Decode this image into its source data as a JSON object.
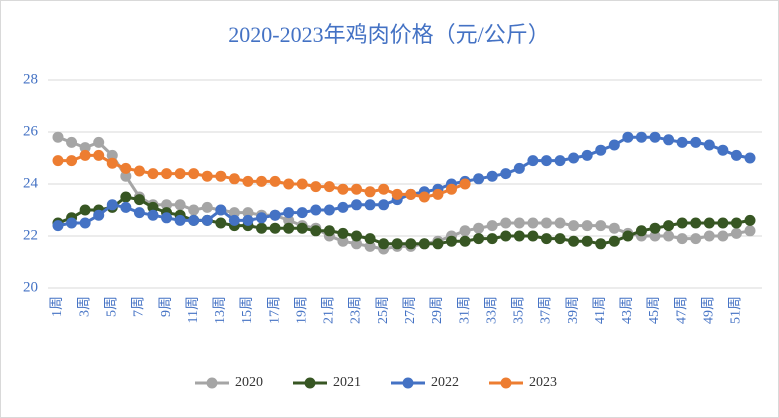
{
  "chart_data": {
    "type": "line",
    "title": "2020-2023年鸡肉价格（元/公斤）",
    "categories": [
      "1周",
      null,
      "3周",
      null,
      "5周",
      null,
      "7周",
      null,
      "9周",
      null,
      "11周",
      null,
      "13周",
      null,
      "15周",
      null,
      "17周",
      null,
      "19周",
      null,
      "21周",
      null,
      "23周",
      null,
      "25周",
      null,
      "27周",
      null,
      "29周",
      null,
      "31周",
      null,
      "33周",
      null,
      "35周",
      null,
      "37周",
      null,
      "39周",
      null,
      "41周",
      null,
      "43周",
      null,
      "45周",
      null,
      "47周",
      null,
      "49周",
      null,
      "51周",
      null
    ],
    "series": [
      {
        "name": "2020",
        "color": "#a5a5a5",
        "values": [
          25.8,
          25.6,
          25.4,
          25.6,
          25.1,
          24.3,
          23.5,
          23.2,
          23.2,
          23.2,
          23.0,
          23.1,
          23.0,
          22.9,
          22.9,
          22.8,
          22.8,
          22.6,
          22.4,
          22.3,
          22.0,
          21.8,
          21.7,
          21.6,
          21.5,
          21.6,
          21.6,
          21.7,
          21.8,
          22.0,
          22.2,
          22.3,
          22.4,
          22.5,
          22.5,
          22.5,
          22.5,
          22.5,
          22.4,
          22.4,
          22.4,
          22.3,
          22.1,
          22.0,
          22.0,
          22.0,
          21.9,
          21.9,
          22.0,
          22.0,
          22.1,
          22.2
        ]
      },
      {
        "name": "2021",
        "color": "#375623",
        "values": [
          22.5,
          22.7,
          23.0,
          23.0,
          23.1,
          23.5,
          23.4,
          23.1,
          22.9,
          22.8,
          22.6,
          22.6,
          22.5,
          22.4,
          22.4,
          22.3,
          22.3,
          22.3,
          22.3,
          22.2,
          22.2,
          22.1,
          22.0,
          21.9,
          21.7,
          21.7,
          21.7,
          21.7,
          21.7,
          21.8,
          21.8,
          21.9,
          21.9,
          22.0,
          22.0,
          22.0,
          21.9,
          21.9,
          21.8,
          21.8,
          21.7,
          21.8,
          22.0,
          22.2,
          22.3,
          22.4,
          22.5,
          22.5,
          22.5,
          22.5,
          22.5,
          22.6
        ]
      },
      {
        "name": "2022",
        "color": "#4472c4",
        "values": [
          22.4,
          22.5,
          22.5,
          22.8,
          23.2,
          23.1,
          22.9,
          22.8,
          22.7,
          22.6,
          22.6,
          22.6,
          23.0,
          22.6,
          22.6,
          22.7,
          22.8,
          22.9,
          22.9,
          23.0,
          23.0,
          23.1,
          23.2,
          23.2,
          23.2,
          23.4,
          23.6,
          23.7,
          23.8,
          24.0,
          24.1,
          24.2,
          24.3,
          24.4,
          24.6,
          24.9,
          24.9,
          24.9,
          25.0,
          25.1,
          25.3,
          25.5,
          25.8,
          25.8,
          25.8,
          25.7,
          25.6,
          25.6,
          25.5,
          25.3,
          25.1,
          25.0
        ]
      },
      {
        "name": "2023",
        "color": "#ed7d31",
        "values": [
          24.9,
          24.9,
          25.1,
          25.1,
          24.8,
          24.6,
          24.5,
          24.4,
          24.4,
          24.4,
          24.4,
          24.3,
          24.3,
          24.2,
          24.1,
          24.1,
          24.1,
          24.0,
          24.0,
          23.9,
          23.9,
          23.8,
          23.8,
          23.7,
          23.8,
          23.6,
          23.6,
          23.5,
          23.6,
          23.8,
          24.0,
          null,
          null,
          null,
          null,
          null,
          null,
          null,
          null,
          null,
          null,
          null,
          null,
          null,
          null,
          null,
          null,
          null,
          null,
          null,
          null,
          null
        ]
      }
    ],
    "ylim": [
      20,
      28
    ],
    "yticks": [
      20,
      22,
      24,
      26,
      28
    ],
    "grid": true
  }
}
